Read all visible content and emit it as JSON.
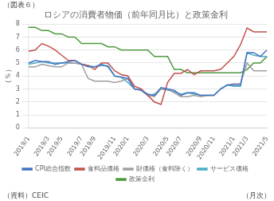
{
  "chart_data": {
    "type": "line",
    "title": "ロシアの消費者物価（前年同月比）と政策金利",
    "ylabel": "（％）",
    "annotations": [
      "（図表６）",
      "（資料）CEIC",
      "（月次）"
    ],
    "categories": [
      "2019/1",
      null,
      null,
      "2019/3",
      null,
      "2019/5",
      null,
      null,
      "2019/7",
      null,
      "2019/9",
      null,
      null,
      "2019/11",
      null,
      "2020/1",
      null,
      null,
      "2020/3",
      null,
      null,
      "2020/5",
      null,
      "2020/7",
      null,
      null,
      "2020/9",
      null,
      "2020/11",
      null,
      null,
      "2021/1",
      null,
      "2021/3",
      null,
      null,
      "2021/5"
    ],
    "series": [
      {
        "name": "CPI総合指数",
        "color": "#4472c4",
        "values": [
          5.0,
          5.2,
          5.1,
          5.1,
          4.9,
          5.0,
          5.1,
          5.2,
          4.9,
          4.7,
          4.7,
          4.9,
          4.7,
          4.0,
          3.9,
          3.8,
          3.0,
          2.9,
          2.6,
          2.5,
          3.1,
          3.0,
          2.9,
          2.5,
          2.7,
          2.7,
          2.5,
          2.5,
          2.5,
          3.0,
          3.3,
          3.3,
          3.3,
          5.8,
          5.8,
          5.5,
          6.0
        ]
      },
      {
        "name": "食料品価格",
        "color": "#c0504d",
        "values": [
          5.9,
          6.0,
          6.5,
          6.3,
          6.0,
          5.6,
          5.2,
          5.2,
          4.9,
          4.8,
          4.5,
          5.0,
          5.0,
          4.4,
          4.1,
          4.0,
          3.2,
          3.0,
          2.5,
          2.0,
          1.8,
          3.5,
          4.2,
          4.2,
          4.5,
          4.1,
          4.4,
          4.4,
          4.4,
          4.5,
          5.0,
          5.5,
          6.4,
          7.7,
          7.4,
          7.4,
          7.4
        ]
      },
      {
        "name": "財価格（食料除く）",
        "color": "#9e9e9e",
        "values": [
          4.7,
          4.7,
          4.9,
          4.8,
          4.7,
          4.7,
          5.0,
          5.0,
          4.9,
          3.8,
          3.6,
          3.6,
          3.6,
          3.5,
          3.6,
          3.8,
          3.0,
          2.9,
          2.5,
          2.4,
          3.0,
          3.0,
          2.7,
          2.4,
          2.4,
          2.5,
          2.4,
          2.5,
          2.5,
          3.0,
          3.3,
          3.4,
          3.4,
          5.0,
          4.4,
          4.4,
          4.4
        ]
      },
      {
        "name": "サービス価格",
        "color": "#4bacc6",
        "values": [
          4.9,
          5.0,
          5.1,
          5.0,
          5.0,
          5.0,
          5.0,
          5.0,
          4.9,
          4.8,
          4.7,
          4.8,
          4.8,
          4.0,
          3.9,
          3.5,
          3.0,
          2.9,
          2.5,
          2.6,
          3.0,
          2.9,
          2.8,
          2.6,
          2.7,
          2.6,
          2.5,
          2.5,
          2.5,
          3.0,
          3.3,
          3.2,
          3.2,
          5.8,
          5.6,
          5.5,
          5.5
        ]
      },
      {
        "name": "政策金利",
        "color": "#4e9a3f",
        "values": [
          7.75,
          7.75,
          7.5,
          7.5,
          7.25,
          7.25,
          7.0,
          7.0,
          6.5,
          6.5,
          6.5,
          6.5,
          6.25,
          6.25,
          6.0,
          6.0,
          6.0,
          6.0,
          6.0,
          5.5,
          5.5,
          5.5,
          4.5,
          4.5,
          4.25,
          4.25,
          4.25,
          4.25,
          4.25,
          4.25,
          4.25,
          4.25,
          4.25,
          4.5,
          5.0,
          5.0,
          5.5
        ]
      }
    ],
    "ylim": [
      0,
      8
    ],
    "yticks": [
      0,
      1,
      2,
      3,
      4,
      5,
      6,
      7,
      8
    ],
    "grid": true,
    "legend": "bottom"
  }
}
